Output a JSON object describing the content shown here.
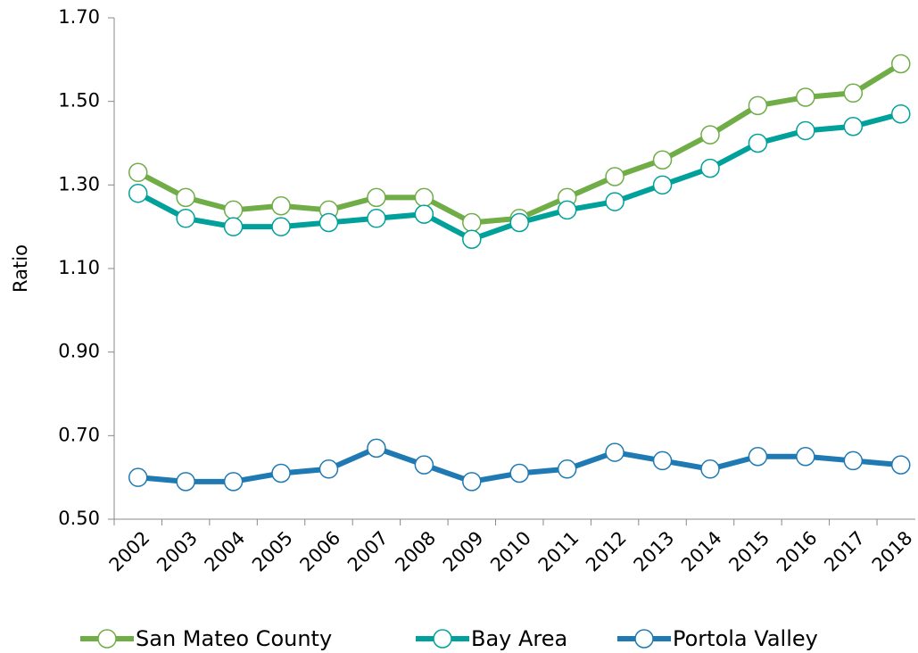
{
  "chart_data": {
    "type": "line",
    "y_label": "Ratio",
    "categories": [
      "2002",
      "2003",
      "2004",
      "2005",
      "2006",
      "2007",
      "2008",
      "2009",
      "2010",
      "2011",
      "2012",
      "2013",
      "2014",
      "2015",
      "2016",
      "2017",
      "2018"
    ],
    "series": [
      {
        "name": "San Mateo County",
        "color": "#70ad47",
        "values": [
          1.33,
          1.27,
          1.24,
          1.25,
          1.24,
          1.27,
          1.27,
          1.21,
          1.22,
          1.27,
          1.32,
          1.36,
          1.42,
          1.49,
          1.51,
          1.52,
          1.59
        ]
      },
      {
        "name": "Bay Area",
        "color": "#00a19a",
        "values": [
          1.28,
          1.22,
          1.2,
          1.2,
          1.21,
          1.22,
          1.23,
          1.17,
          1.21,
          1.24,
          1.26,
          1.3,
          1.34,
          1.4,
          1.43,
          1.44,
          1.47
        ]
      },
      {
        "name": "Portola Valley",
        "color": "#1f7ab4",
        "values": [
          0.6,
          0.59,
          0.59,
          0.61,
          0.62,
          0.67,
          0.63,
          0.59,
          0.61,
          0.62,
          0.66,
          0.64,
          0.62,
          0.65,
          0.65,
          0.64,
          0.63
        ]
      }
    ],
    "ylim": [
      0.5,
      1.7
    ],
    "yticks": [
      {
        "value": 0.5,
        "label": "0.50"
      },
      {
        "value": 0.7,
        "label": "0.70"
      },
      {
        "value": 0.9,
        "label": "0.90"
      },
      {
        "value": 1.1,
        "label": "1.10"
      },
      {
        "value": 1.3,
        "label": "1.30"
      },
      {
        "value": 1.5,
        "label": "1.50"
      },
      {
        "value": 1.7,
        "label": "1.70"
      }
    ],
    "grid": false,
    "legend": "bottom"
  }
}
